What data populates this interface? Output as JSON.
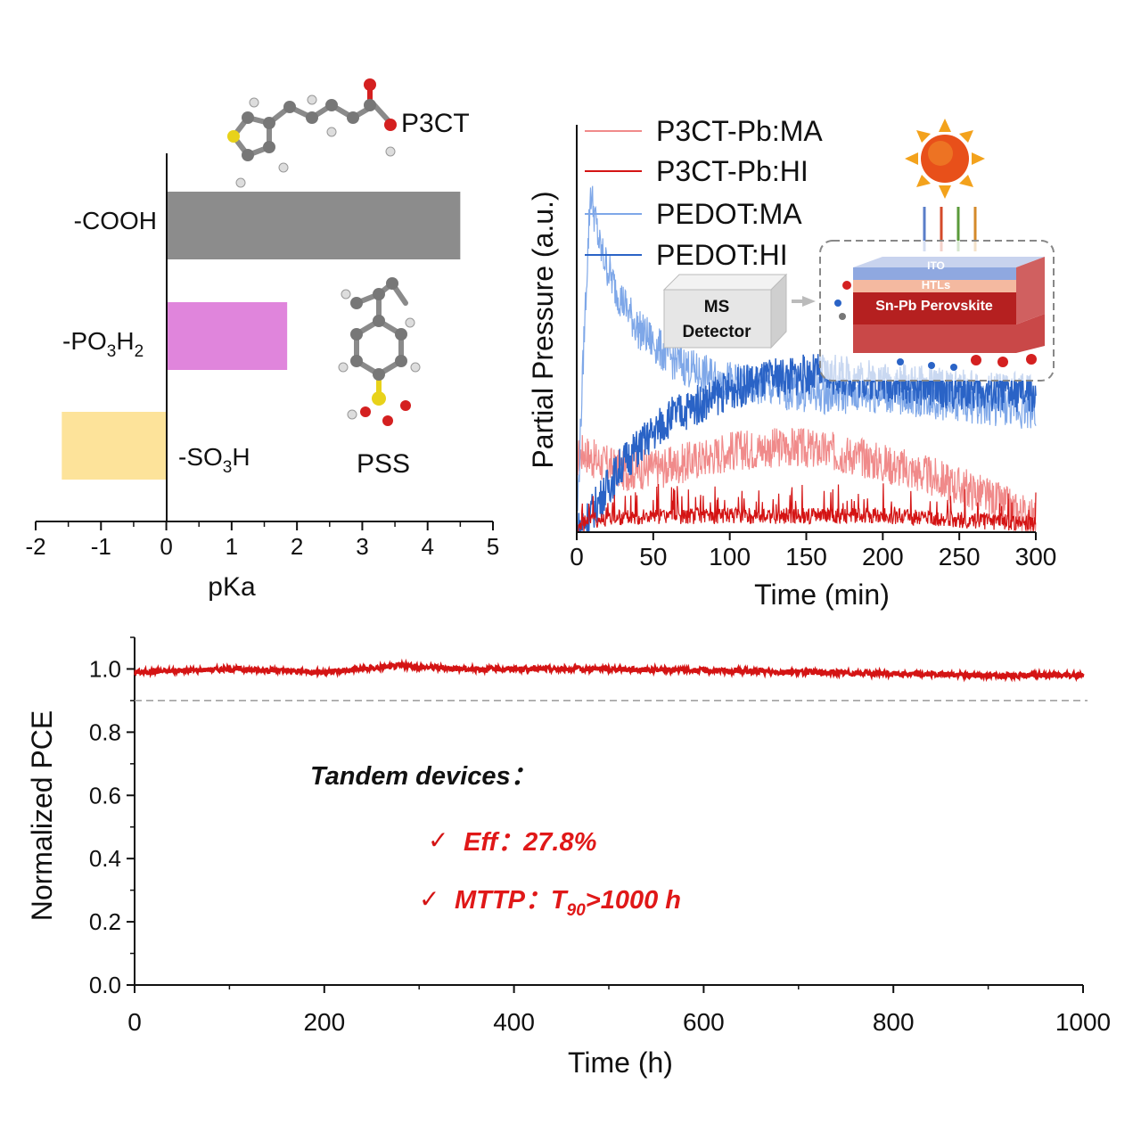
{
  "chart_data": [
    {
      "id": "pka",
      "type": "bar",
      "orientation": "horizontal",
      "categories": [
        "-COOH",
        "-PO3H2",
        "-SO3H"
      ],
      "category_labels": [
        {
          "main": "-COOH",
          "sub1": "",
          "mid": "",
          "sub2": ""
        },
        {
          "main": "-PO",
          "sub1": "3",
          "mid": "H",
          "sub2": "2"
        },
        {
          "main": "-SO",
          "sub1": "3",
          "mid": "H",
          "sub2": ""
        }
      ],
      "values": [
        4.5,
        1.85,
        -1.6
      ],
      "colors": [
        "#8c8c8c",
        "#e085dc",
        "#fde39a"
      ],
      "xlabel": "pKa",
      "xlim": [
        -2,
        5
      ],
      "xticks": [
        "-2",
        "-1",
        "0",
        "1",
        "2",
        "3",
        "4",
        "5"
      ],
      "molecule_labels": [
        "P3CT",
        "PSS"
      ]
    },
    {
      "id": "pressure",
      "type": "line",
      "xlabel": "Time (min)",
      "ylabel": "Partial Pressure (a.u.)",
      "xlim": [
        0,
        300
      ],
      "xticks": [
        "0",
        "50",
        "100",
        "150",
        "200",
        "250",
        "300"
      ],
      "legend_position": "top-left",
      "series": [
        {
          "name": "P3CT-Pb:MA",
          "color": "#f08a8a",
          "x": [
            0,
            5,
            10,
            30,
            60,
            100,
            140,
            180,
            220,
            260,
            300
          ],
          "y": [
            0.18,
            0.2,
            0.18,
            0.15,
            0.16,
            0.2,
            0.21,
            0.19,
            0.15,
            0.1,
            0.03
          ]
        },
        {
          "name": "P3CT-Pb:HI",
          "color": "#d41414",
          "x": [
            0,
            10,
            50,
            100,
            150,
            200,
            250,
            300
          ],
          "y": [
            0.01,
            0.03,
            0.04,
            0.04,
            0.04,
            0.04,
            0.03,
            0.02
          ]
        },
        {
          "name": "PEDOT:MA",
          "color": "#7ea7e8",
          "x": [
            0,
            5,
            9,
            15,
            25,
            40,
            60,
            80,
            100,
            130,
            160,
            200,
            250,
            300
          ],
          "y": [
            0.0,
            0.5,
            0.84,
            0.7,
            0.6,
            0.5,
            0.43,
            0.39,
            0.37,
            0.35,
            0.34,
            0.34,
            0.32,
            0.3
          ]
        },
        {
          "name": "PEDOT:HI",
          "color": "#2a63c6",
          "x": [
            0,
            10,
            30,
            60,
            100,
            130,
            160,
            200,
            250,
            300
          ],
          "y": [
            0.0,
            0.05,
            0.17,
            0.28,
            0.35,
            0.38,
            0.39,
            0.37,
            0.35,
            0.34
          ]
        }
      ],
      "schematic": {
        "detector_line1": "MS",
        "detector_line2": "Detector",
        "layer1": "ITO",
        "layer2": "HTLs",
        "layer3": "Sn-Pb Perovskite"
      }
    },
    {
      "id": "stability",
      "type": "line",
      "xlabel": "Time (h)",
      "ylabel": "Normalized PCE",
      "xlim": [
        0,
        1000
      ],
      "ylim": [
        0,
        1.1
      ],
      "xticks": [
        "0",
        "200",
        "400",
        "600",
        "800",
        "1000"
      ],
      "yticks": [
        "0.0",
        "0.2",
        "0.4",
        "0.6",
        "0.8",
        "1.0"
      ],
      "reference_line": 0.9,
      "series": [
        {
          "name": "",
          "color": "#d41414",
          "x": [
            0,
            100,
            200,
            280,
            350,
            500,
            600,
            700,
            800,
            900,
            1000
          ],
          "y": [
            0.99,
            1.0,
            0.99,
            1.01,
            1.0,
            1.0,
            0.995,
            0.99,
            0.985,
            0.98,
            0.98
          ]
        }
      ],
      "annotations": {
        "heading": "Tandem devices：",
        "check": "✓",
        "eff": "Eff：27.8%",
        "mttp_pre": "MTTP：T",
        "mttp_sub": "90",
        "mttp_post": ">1000 h"
      }
    }
  ]
}
